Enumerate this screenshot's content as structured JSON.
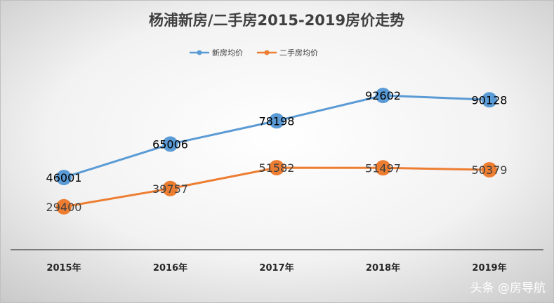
{
  "chart_data": {
    "type": "line",
    "title": "杨浦新房/二手房2015-2019房价走势",
    "categories": [
      "2015年",
      "2016年",
      "2017年",
      "2018年",
      "2019年"
    ],
    "series": [
      {
        "name": "新房均价",
        "values": [
          46001,
          65006,
          78198,
          92602,
          90128
        ],
        "color": "#5b9bd5",
        "label_color": "#000000"
      },
      {
        "name": "二手房均价",
        "values": [
          29400,
          39757,
          51582,
          51497,
          50379
        ],
        "color": "#ed7d31",
        "label_color": "#404040"
      }
    ],
    "legend": "top-center",
    "grid": false,
    "y_axis_visible": false,
    "background": "radial-gradient white to gray"
  },
  "watermark": "头条 @房导航"
}
